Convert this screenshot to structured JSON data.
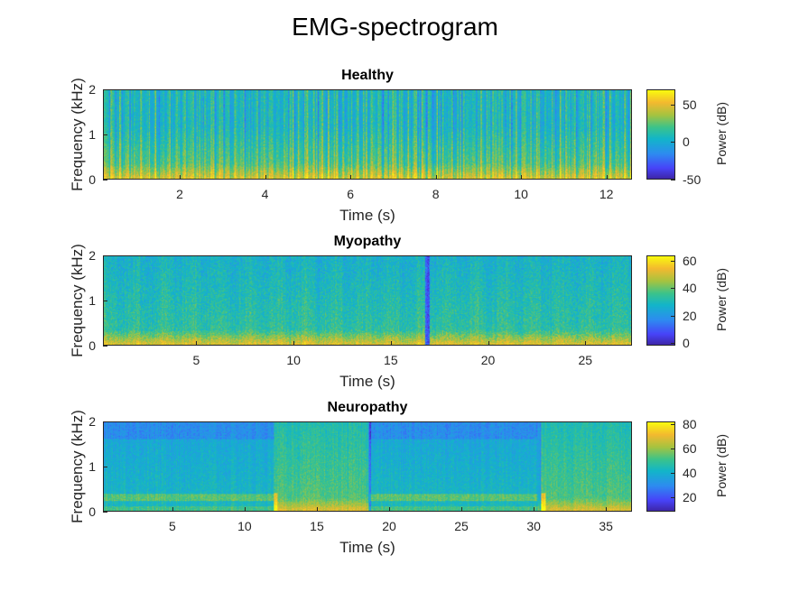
{
  "figure": {
    "title": "EMG-spectrogram"
  },
  "colors": {
    "axis": "#262626",
    "colormap": "parula"
  },
  "chart_data": [
    {
      "type": "heatmap",
      "title": "Healthy",
      "xlabel": "Time (s)",
      "ylabel": "Frequency (kHz)",
      "xlim": [
        0.2,
        12.6
      ],
      "ylim": [
        0,
        2
      ],
      "xticks": [
        2,
        4,
        6,
        8,
        10,
        12
      ],
      "yticks": [
        0,
        1,
        2
      ],
      "colorbar": {
        "label": "Power (dB)",
        "ticks": [
          -50,
          0,
          50
        ],
        "range": [
          -50,
          70
        ]
      },
      "pattern": "dense vertical striations, yellow near 0 kHz fading to green/teal above 1 kHz"
    },
    {
      "type": "heatmap",
      "title": "Myopathy",
      "xlabel": "Time (s)",
      "ylabel": "Frequency (kHz)",
      "xlim": [
        0.2,
        27.4
      ],
      "ylim": [
        0,
        2
      ],
      "xticks": [
        5,
        10,
        15,
        20,
        25
      ],
      "yticks": [
        0,
        1,
        2
      ],
      "colorbar": {
        "label": "Power (dB)",
        "ticks": [
          0,
          20,
          40,
          60
        ],
        "range": [
          -2,
          64
        ]
      },
      "pattern": "mostly teal/green, yellow band below 0.3 kHz, dark blue vertical line near 16.8 s"
    },
    {
      "type": "heatmap",
      "title": "Neuropathy",
      "xlabel": "Time (s)",
      "ylabel": "Frequency (kHz)",
      "xlim": [
        0.2,
        36.8
      ],
      "ylim": [
        0,
        2
      ],
      "xticks": [
        5,
        10,
        15,
        20,
        25,
        30,
        35
      ],
      "yticks": [
        0,
        1,
        2
      ],
      "colorbar": {
        "label": "Power (dB)",
        "ticks": [
          20,
          40,
          60,
          80
        ],
        "range": [
          8,
          82
        ]
      },
      "pattern": "segments 0.2-12 s and 18.5-30 s teal with blue top band; segments 12-18.5 s and 30.5-36.8 s green/yellow"
    }
  ]
}
